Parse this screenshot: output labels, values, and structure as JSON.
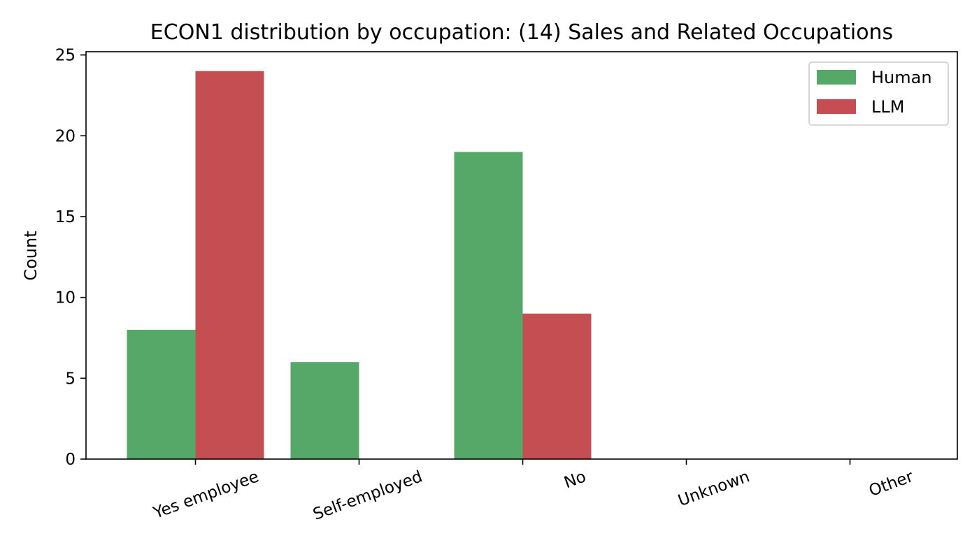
{
  "chart_data": {
    "type": "bar",
    "title": "ECON1 distribution by occupation: (14) Sales and Related Occupations",
    "xlabel": "",
    "ylabel": "Count",
    "categories": [
      "Yes employee",
      "Self-employed",
      "No",
      "Unknown",
      "Other"
    ],
    "series": [
      {
        "name": "Human",
        "color": "#55a868",
        "values": [
          8,
          6,
          19,
          0,
          0
        ]
      },
      {
        "name": "LLM",
        "color": "#c44e52",
        "values": [
          24,
          0,
          9,
          0,
          0
        ]
      }
    ],
    "ylim": [
      0,
      25.2
    ],
    "yticks": [
      0,
      5,
      10,
      15,
      20,
      25
    ],
    "grid": false,
    "legend_position": "top-right",
    "xtick_rotation": "-20deg"
  }
}
